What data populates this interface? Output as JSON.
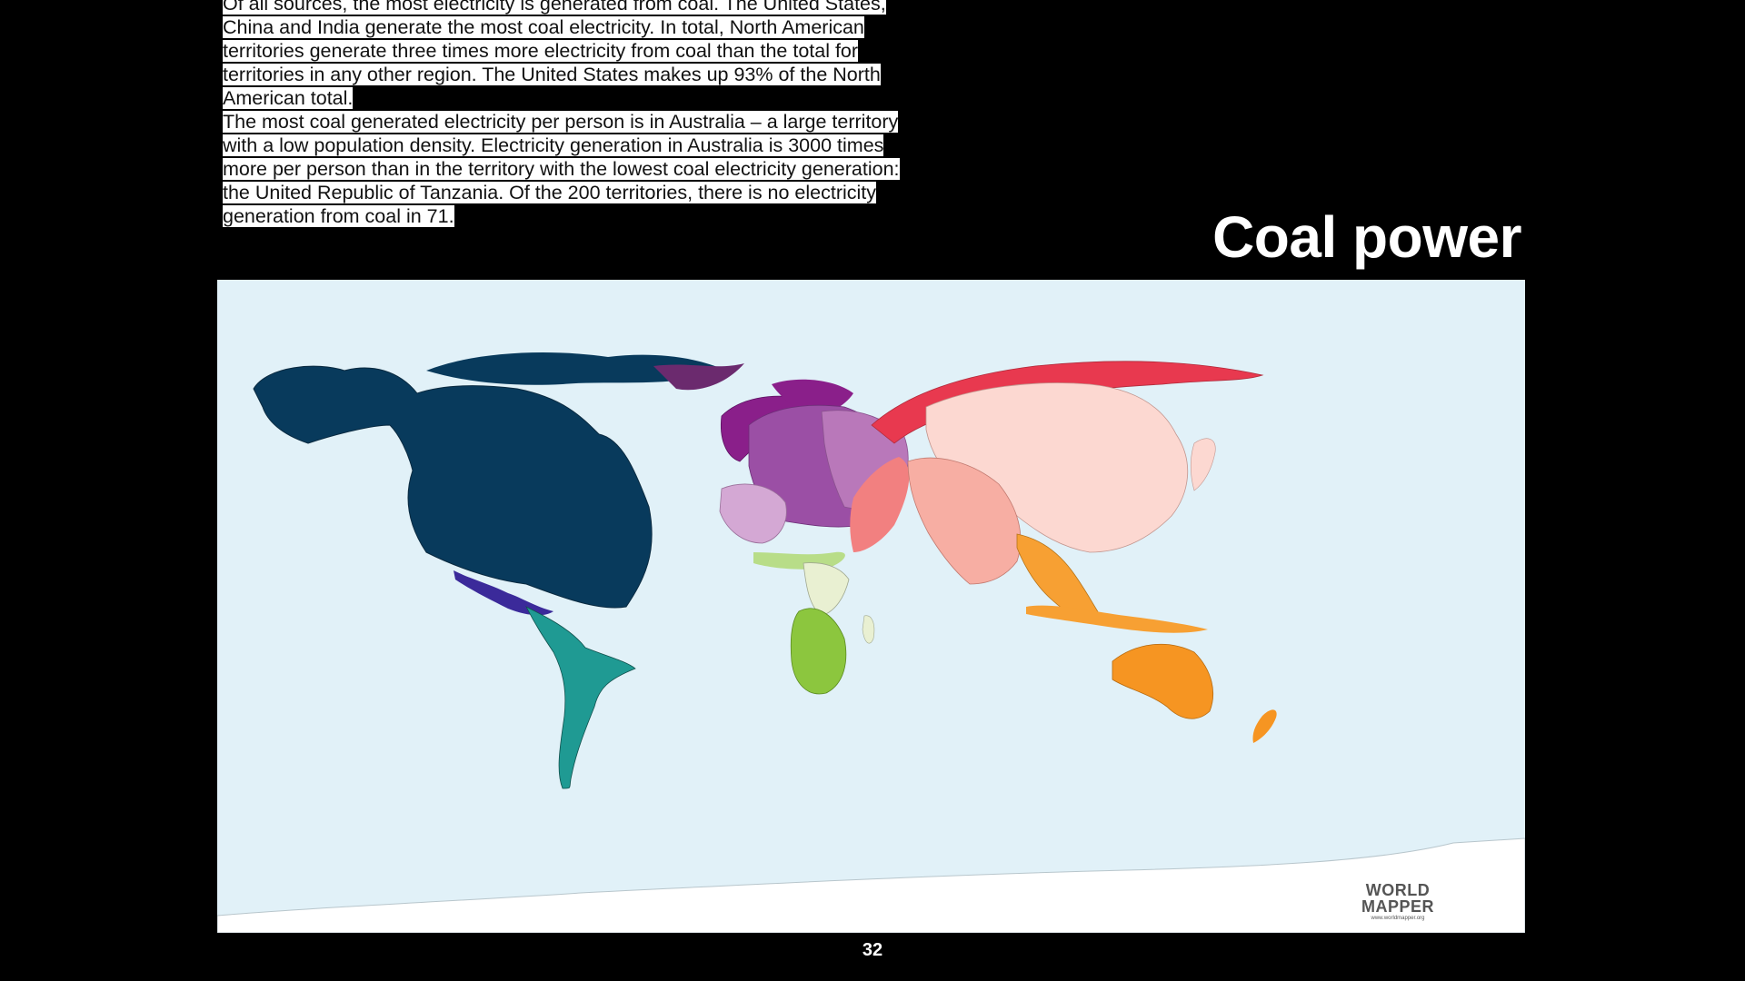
{
  "slide": {
    "title": "Coal power",
    "page_number": "32",
    "intro_paragraphs": [
      "Of all sources, the most electricity is generated from coal. The United States, China and India generate the most coal electricity. In total, North American territories generate three times more electricity from coal than the total for territories in any other region. The United States makes up 93% of the North American total.",
      "The most coal generated electricity per person is in Australia – a large territory with a low population density. Electricity generation in Australia is 3000 times more per person than in the territory with the lowest coal electricity generation: the United Republic of Tanzania. Of the 200 territories, there is no electricity generation from coal in 71."
    ]
  },
  "map": {
    "logo_line1": "WORLD",
    "logo_line2": "MAPPER",
    "logo_url": "www.worldmapper.org",
    "colors": {
      "ocean": "#e1f1f8",
      "north_america": "#083a5c",
      "central_america": "#3b2a9a",
      "south_america": "#1f9a93",
      "western_europe": "#9b4fa5",
      "eastern_europe": "#b978ba",
      "northern_europe": "#8a1f8a",
      "eastern_asia_russia": "#e8394f",
      "china_east_asia": "#fcd8d1",
      "south_asia": "#f7aea3",
      "middle_east": "#f28080",
      "southeast_asia": "#f7a033",
      "oceania": "#f69522",
      "southern_africa": "#8cc63e",
      "central_africa": "#e9f0d2",
      "north_africa": "#b8dd88",
      "antarctica": "#ffffff"
    }
  }
}
